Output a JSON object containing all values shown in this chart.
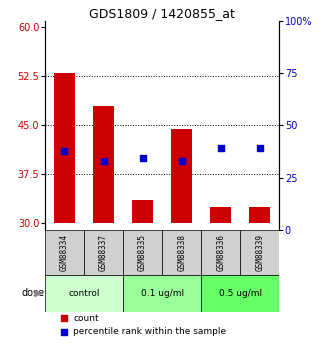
{
  "title": "GDS1809 / 1420855_at",
  "samples": [
    "GSM88334",
    "GSM88337",
    "GSM88335",
    "GSM88338",
    "GSM88336",
    "GSM88339"
  ],
  "bar_heights": [
    53.0,
    48.0,
    33.5,
    44.5,
    32.5,
    32.5
  ],
  "bar_bottom": 30,
  "blue_dots_y": [
    41.0,
    39.5,
    40.0,
    39.5,
    41.5,
    41.5
  ],
  "bar_color": "#cc0000",
  "dot_color": "#0000cc",
  "ylim_left": [
    29,
    61
  ],
  "ylim_right": [
    0,
    100
  ],
  "yticks_left": [
    30,
    37.5,
    45,
    52.5,
    60
  ],
  "yticks_right": [
    0,
    25,
    50,
    75,
    100
  ],
  "group_spans": [
    [
      0,
      1,
      "control",
      "#ccffcc"
    ],
    [
      2,
      3,
      "0.1 ug/ml",
      "#99ff99"
    ],
    [
      4,
      5,
      "0.5 ug/ml",
      "#66ff66"
    ]
  ],
  "dose_label": "dose",
  "legend_count": "count",
  "legend_pct": "percentile rank within the sample",
  "bar_width": 0.55,
  "left_axis_color": "#cc0000",
  "right_axis_color": "#0000cc",
  "sample_box_color": "#d0d0d0",
  "left_ytick_fontsize": 7,
  "right_ytick_fontsize": 7,
  "title_fontsize": 9
}
